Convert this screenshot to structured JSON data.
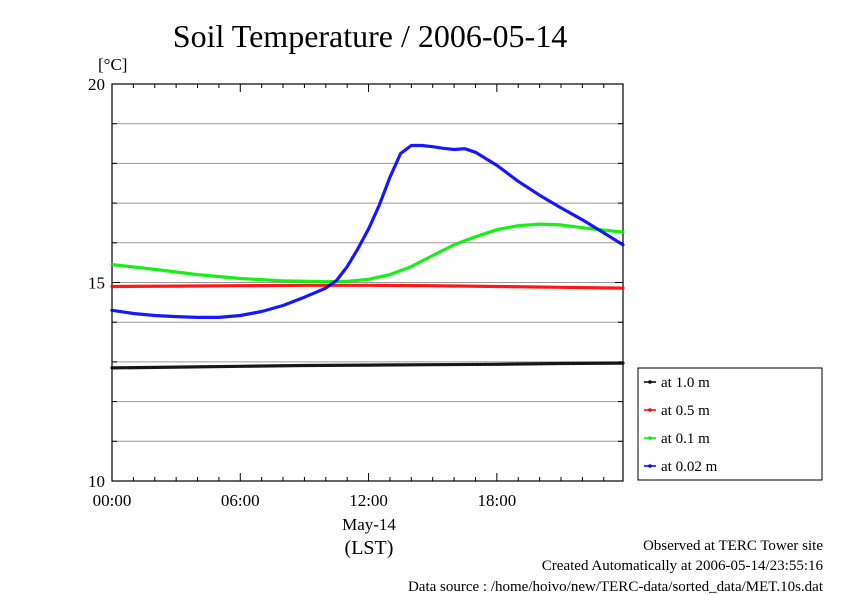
{
  "chart_data": {
    "type": "line",
    "title": "Soil Temperature / 2006-05-14",
    "yunit": "[°C]",
    "ylim": [
      10,
      20
    ],
    "yticks": [
      10,
      15,
      20
    ],
    "xlim": [
      0,
      23.9
    ],
    "xticks": [
      {
        "value": 0,
        "label": "00:00"
      },
      {
        "value": 6,
        "label": "06:00"
      },
      {
        "value": 12,
        "label": "12:00"
      },
      {
        "value": 18,
        "label": "18:00"
      }
    ],
    "xdate": "May-14",
    "xlabel": "(LST)",
    "grid": true,
    "legend_position": "right",
    "series": [
      {
        "name": "at 1.0 m",
        "color": "#000000",
        "points": [
          [
            0,
            12.85
          ],
          [
            3,
            12.87
          ],
          [
            6,
            12.89
          ],
          [
            9,
            12.91
          ],
          [
            12,
            12.92
          ],
          [
            15,
            12.93
          ],
          [
            18,
            12.94
          ],
          [
            21,
            12.96
          ],
          [
            23.9,
            12.97
          ]
        ]
      },
      {
        "name": "at 0.5 m",
        "color": "#ff0000",
        "points": [
          [
            0,
            14.9
          ],
          [
            3,
            14.91
          ],
          [
            6,
            14.92
          ],
          [
            9,
            14.93
          ],
          [
            12,
            14.93
          ],
          [
            15,
            14.92
          ],
          [
            18,
            14.9
          ],
          [
            21,
            14.88
          ],
          [
            23.9,
            14.86
          ]
        ]
      },
      {
        "name": "at 0.1 m",
        "color": "#00ee00",
        "points": [
          [
            0,
            15.45
          ],
          [
            2,
            15.33
          ],
          [
            4,
            15.2
          ],
          [
            6,
            15.1
          ],
          [
            8,
            15.04
          ],
          [
            10,
            15.02
          ],
          [
            11,
            15.03
          ],
          [
            12,
            15.08
          ],
          [
            13,
            15.2
          ],
          [
            14,
            15.4
          ],
          [
            15,
            15.68
          ],
          [
            16,
            15.95
          ],
          [
            17,
            16.15
          ],
          [
            18,
            16.33
          ],
          [
            19,
            16.43
          ],
          [
            20,
            16.47
          ],
          [
            21,
            16.45
          ],
          [
            22,
            16.38
          ],
          [
            23,
            16.32
          ],
          [
            23.9,
            16.27
          ]
        ]
      },
      {
        "name": "at 0.02 m",
        "color": "#0000ff",
        "points": [
          [
            0,
            14.3
          ],
          [
            1,
            14.22
          ],
          [
            2,
            14.17
          ],
          [
            3,
            14.14
          ],
          [
            4,
            14.12
          ],
          [
            5,
            14.12
          ],
          [
            6,
            14.17
          ],
          [
            7,
            14.27
          ],
          [
            8,
            14.42
          ],
          [
            9,
            14.63
          ],
          [
            10,
            14.86
          ],
          [
            10.5,
            15.05
          ],
          [
            11,
            15.4
          ],
          [
            11.5,
            15.85
          ],
          [
            12,
            16.35
          ],
          [
            12.5,
            16.95
          ],
          [
            13,
            17.65
          ],
          [
            13.5,
            18.25
          ],
          [
            14,
            18.45
          ],
          [
            14.5,
            18.45
          ],
          [
            15,
            18.42
          ],
          [
            15.5,
            18.38
          ],
          [
            16,
            18.35
          ],
          [
            16.5,
            18.37
          ],
          [
            17,
            18.28
          ],
          [
            18,
            17.95
          ],
          [
            19,
            17.55
          ],
          [
            20,
            17.2
          ],
          [
            21,
            16.88
          ],
          [
            22,
            16.58
          ],
          [
            23,
            16.25
          ],
          [
            23.9,
            15.95
          ]
        ]
      }
    ]
  },
  "footer": {
    "line1": "Observed at TERC Tower site",
    "line2": "Created Automatically at 2006-05-14/23:55:16",
    "line3": "Data source : /home/hoivo/new/TERC-data/sorted_data/MET.10s.dat"
  }
}
